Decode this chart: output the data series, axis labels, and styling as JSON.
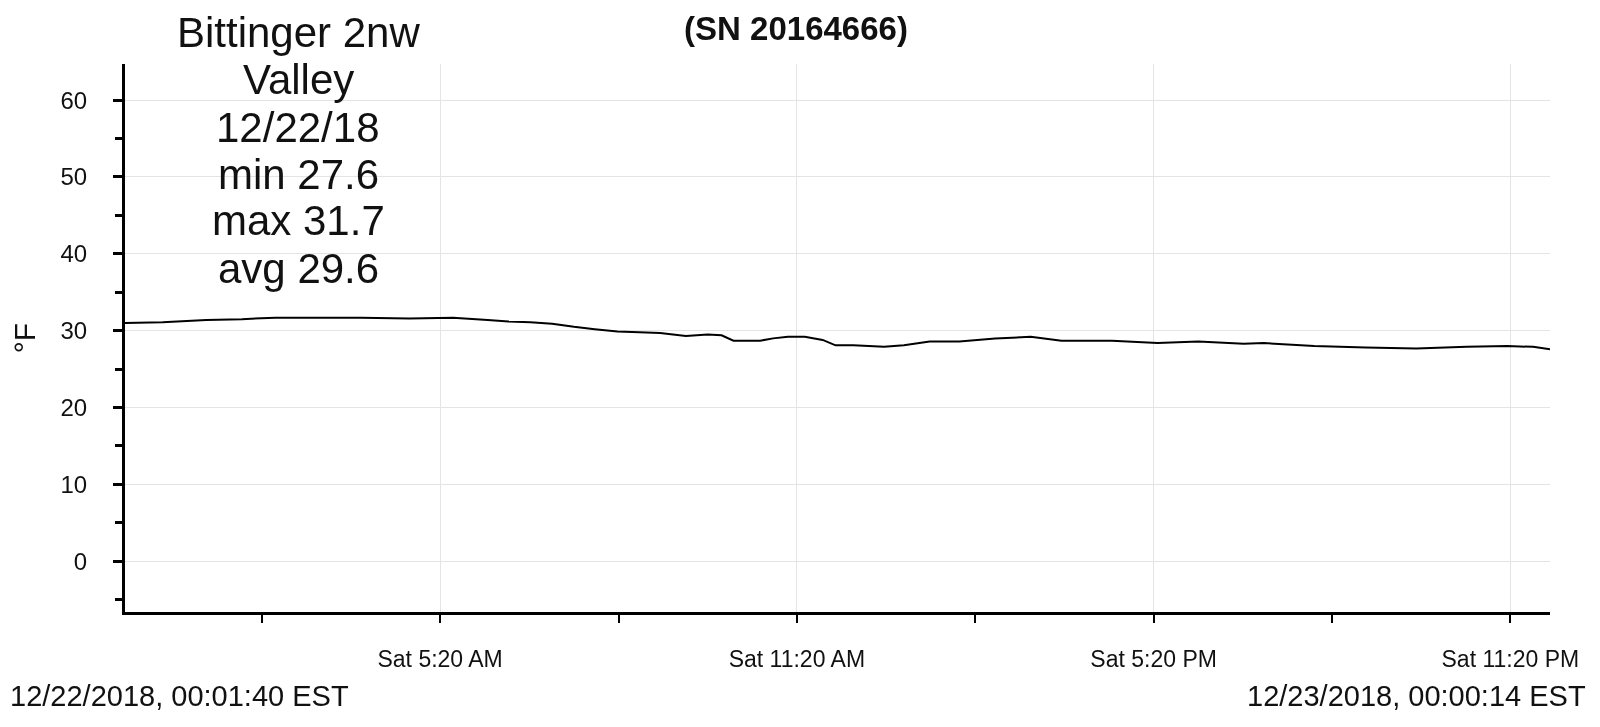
{
  "chart_data": {
    "type": "line",
    "title": "(SN 20164666)",
    "ylabel": "°F",
    "annotations": [
      "Bittinger 2nw\nValley\n12/22/18\nmin 27.6\nmax 31.7\navg 29.6",
      "12/22/2018, 00:01:40 EST",
      "12/23/2018, 00:00:14 EST"
    ],
    "x": [
      "2018-12-22T00:02",
      "2018-12-22T00:40",
      "2018-12-22T01:24",
      "2018-12-22T02:00",
      "2018-12-22T02:34",
      "2018-12-22T03:13",
      "2018-12-22T04:00",
      "2018-12-22T04:49",
      "2018-12-22T05:33",
      "2018-12-22T06:08",
      "2018-12-22T06:29",
      "2018-12-22T06:51",
      "2018-12-22T07:13",
      "2018-12-22T07:35",
      "2018-12-22T07:56",
      "2018-12-22T08:19",
      "2018-12-22T08:41",
      "2018-12-22T09:02",
      "2018-12-22T09:28",
      "2018-12-22T09:50",
      "2018-12-22T10:04",
      "2018-12-22T10:16",
      "2018-12-22T10:43",
      "2018-12-22T10:56",
      "2018-12-22T11:11",
      "2018-12-22T11:28",
      "2018-12-22T11:46",
      "2018-12-22T11:59",
      "2018-12-22T12:17",
      "2018-12-22T12:48",
      "2018-12-22T13:08",
      "2018-12-22T13:34",
      "2018-12-22T14:04",
      "2018-12-22T14:40",
      "2018-12-22T15:16",
      "2018-12-22T15:47",
      "2018-12-22T16:38",
      "2018-12-22T17:24",
      "2018-12-22T18:05",
      "2018-12-22T18:51",
      "2018-12-22T19:11",
      "2018-12-22T20:02",
      "2018-12-22T20:54",
      "2018-12-22T21:45",
      "2018-12-22T22:36",
      "2018-12-22T23:17",
      "2018-12-22T23:43",
      "2018-12-23T00:00"
    ],
    "values": [
      31.0,
      31.1,
      31.4,
      31.5,
      31.7,
      31.7,
      31.7,
      31.6,
      31.7,
      31.4,
      31.2,
      31.1,
      30.9,
      30.5,
      30.2,
      29.9,
      29.8,
      29.7,
      29.3,
      29.5,
      29.4,
      28.7,
      28.7,
      29.0,
      29.2,
      29.2,
      28.8,
      28.1,
      28.1,
      27.9,
      28.1,
      28.6,
      28.6,
      29.0,
      29.2,
      28.7,
      28.7,
      28.4,
      28.6,
      28.3,
      28.4,
      28.0,
      27.8,
      27.7,
      27.9,
      28.0,
      27.9,
      27.6
    ],
    "color": "#000000",
    "xlim": [
      "2018-12-22T00:02",
      "2018-12-23T00:00"
    ],
    "xticks": [
      {
        "value": "2018-12-22T02:20",
        "label": null
      },
      {
        "value": "2018-12-22T05:20",
        "label": "Sat 5:20 AM"
      },
      {
        "value": "2018-12-22T08:20",
        "label": null
      },
      {
        "value": "2018-12-22T11:20",
        "label": "Sat 11:20 AM"
      },
      {
        "value": "2018-12-22T14:20",
        "label": null
      },
      {
        "value": "2018-12-22T17:20",
        "label": "Sat 5:20 PM"
      },
      {
        "value": "2018-12-22T20:20",
        "label": null
      },
      {
        "value": "2018-12-22T23:20",
        "label": "Sat 11:20 PM"
      }
    ],
    "ylim": [
      -6.6,
      64.7
    ],
    "yticks": [
      {
        "value": -5,
        "label": null
      },
      0,
      {
        "value": 5,
        "label": null
      },
      10,
      {
        "value": 15,
        "label": null
      },
      20,
      {
        "value": 25,
        "label": null
      },
      30,
      {
        "value": 35,
        "label": null
      },
      40,
      {
        "value": 45,
        "label": null
      },
      50,
      {
        "value": 55,
        "label": null
      },
      60
    ],
    "grid": true,
    "marker": "none",
    "line_style": "solid"
  }
}
